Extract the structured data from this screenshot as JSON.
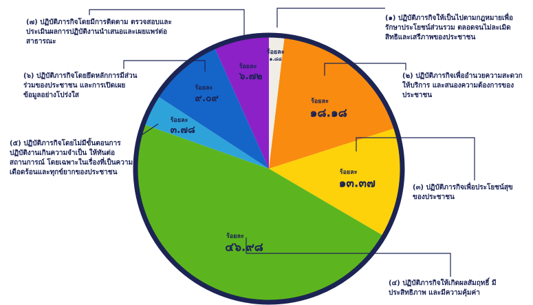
{
  "chart_data": {
    "type": "pie",
    "categories": [
      "(๑) ปฏิบัติภารกิจให้เป็นไปตามกฎหมายเพื่อรักษาประโยชน์ส่วนรวม ตลอดจนไม่ละเมิดสิทธิและเสรีภาพของประชาชน",
      "(๒) ปฏิบัติภารกิจเพื่ออำนวยความสะดวกให้บริการ และสนองความต้องการของประชาชน",
      "(๓) ปฏิบัติภารกิจเพื่อประโยชน์สุขของประชาชน",
      "(๔) ปฏิบัติภารกิจให้เกิดผลสัมฤทธิ์ มีประสิทธิภาพ และมีความคุ้มค่า",
      "(๕) ปฏิบัติภารกิจโดยไม่มีขั้นตอนการปฏิบัติงานเกินความจำเป็น ให้ทันต่อสถานการณ์ โดยเฉพาะในเรื่องที่เป็นความเดือดร้อนและทุกข์ยากของประชาชน",
      "(๖) ปฏิบัติภารกิจโดยยึดหลักการมีส่วนร่วมของประชาชน และการเปิดเผยข้อมูลอย่างโปร่งใส",
      "(๗) ปฏิบัติภารกิจโดยมีการติดตาม ตรวจสอบและประเมินผลการปฏิบัติงานนำเสนอและเผยแพร่ต่อสาธารณะ"
    ],
    "values": [
      1.88,
      18.18,
      13.37,
      46.98,
      3.78,
      9.09,
      6.72
    ],
    "value_labels": [
      "ร้อยละ\n๑.๘๘",
      "ร้อยละ\n๑๘.๑๘",
      "ร้อยละ\n๑๓.๓๗",
      "ร้อยละ\n๔๖.๙๘",
      "ร้อยละ\n๓.๗๘",
      "ร้อยละ\n๙.๐๙",
      "ร้อยละ\n๖.๗๒"
    ],
    "colors": [
      "#f0ede6",
      "#f98b10",
      "#fdd20a",
      "#5cb51e",
      "#2ea3da",
      "#1565c8",
      "#8c21c8"
    ]
  }
}
